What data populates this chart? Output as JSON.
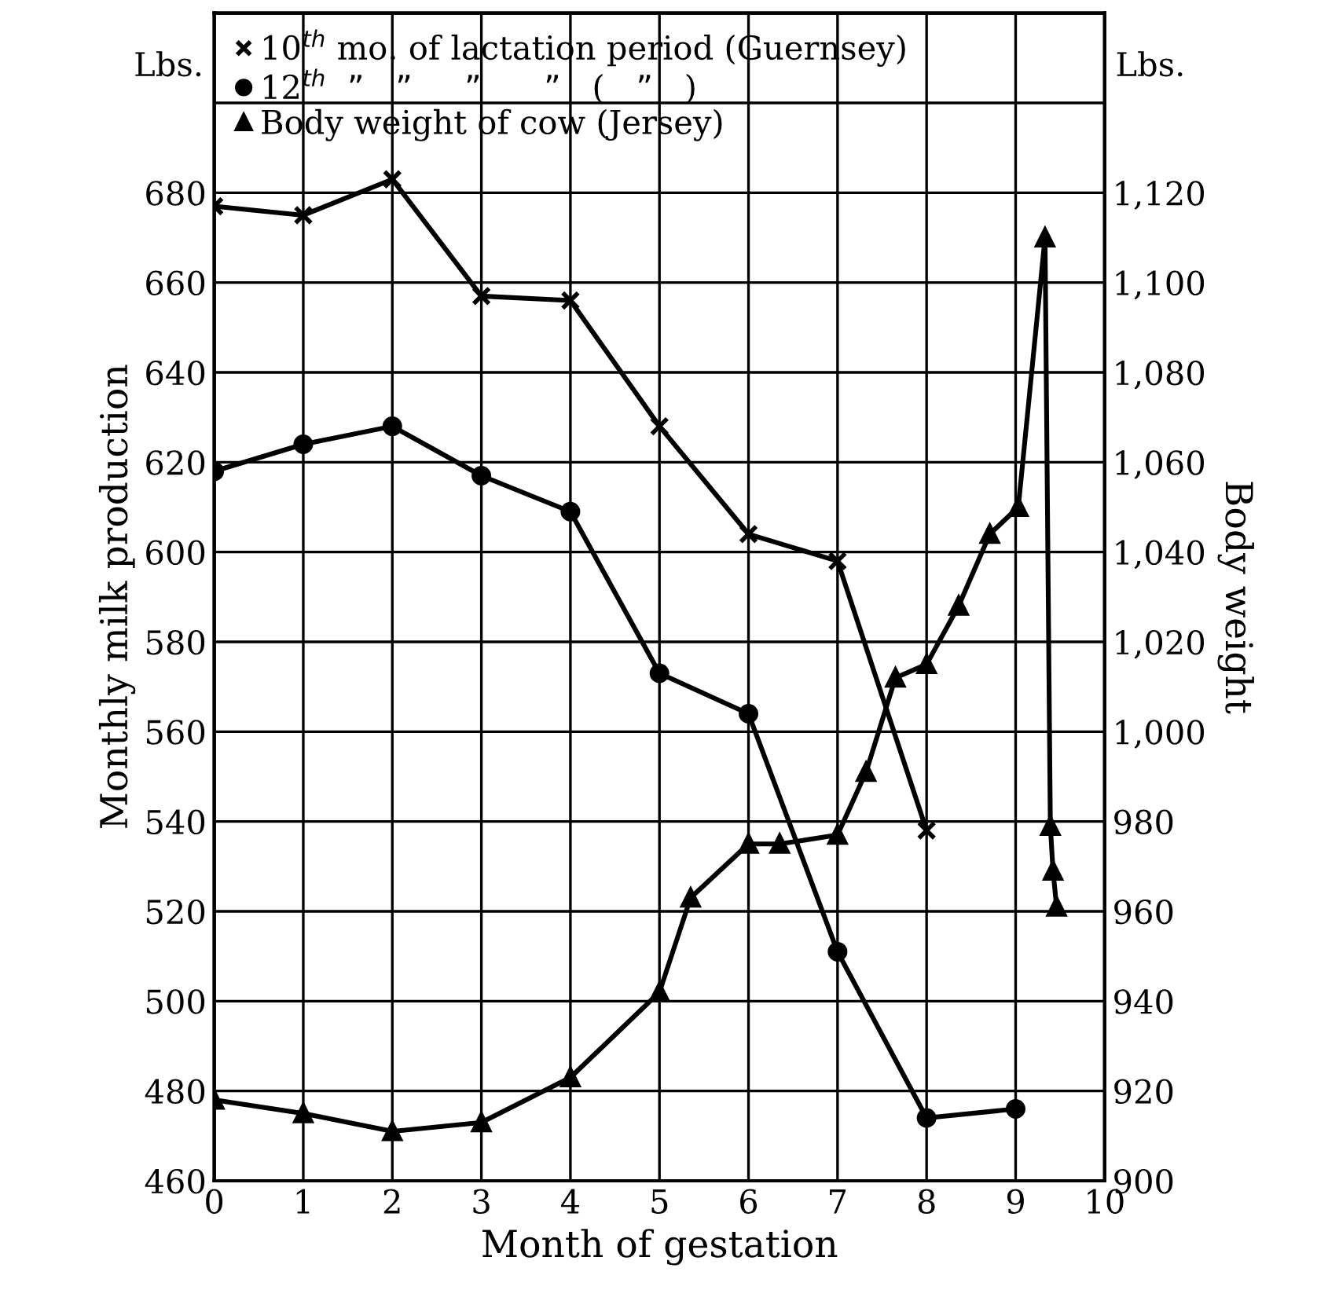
{
  "chart_data": {
    "type": "line",
    "xlabel": "Month of gestation",
    "ylabel": "Monthly milk production",
    "y2label": "Body weight",
    "annotations": [
      "Lbs.",
      "Lbs."
    ],
    "xlim": [
      0,
      10
    ],
    "xticks": [
      0,
      1,
      2,
      3,
      4,
      5,
      6,
      7,
      8,
      9,
      10
    ],
    "ylim": [
      460,
      720
    ],
    "yticks": [
      460,
      480,
      500,
      520,
      540,
      560,
      580,
      600,
      620,
      640,
      660,
      680,
      {
        "value": 700,
        "label": null
      }
    ],
    "y2lim": [
      900,
      1160
    ],
    "y2ticks": [
      900,
      920,
      940,
      960,
      980,
      {
        "value": 1000,
        "label": "1,000"
      },
      {
        "value": 1020,
        "label": "1,020"
      },
      {
        "value": 1040,
        "label": "1,040"
      },
      {
        "value": 1060,
        "label": "1,060"
      },
      {
        "value": 1080,
        "label": "1,080"
      },
      {
        "value": 1100,
        "label": "1,100"
      },
      {
        "value": 1120,
        "label": "1,120"
      },
      {
        "value": 1140,
        "label": null
      }
    ],
    "grid": true,
    "legend": "top left",
    "line_style": "solid",
    "series": [
      {
        "name": "10$^{th}$ mo. of lactation period (Guernsey)",
        "color": "#000000",
        "marker": "cross",
        "x": [
          0,
          1,
          2,
          3,
          4,
          5,
          6,
          7,
          8
        ],
        "values": [
          677,
          675,
          683,
          657,
          656,
          628,
          604,
          598,
          538
        ]
      },
      {
        "name": "12$^{th}$  ”   ”     ”      ”   (   ”   )",
        "color": "#000000",
        "marker": "circle",
        "x": [
          0,
          1,
          2,
          3,
          4,
          5,
          6,
          7,
          8,
          9
        ],
        "values": [
          618,
          624,
          628,
          617,
          609,
          573,
          564,
          511,
          474,
          476
        ]
      },
      {
        "name": "Body weight of cow (Jersey)",
        "color": "#000000",
        "marker": "triangle",
        "axis": "y2",
        "x": [
          0,
          1,
          2,
          3,
          4,
          5,
          5.35,
          6,
          6.35,
          7,
          7.32,
          7.65,
          8,
          8.36,
          8.71,
          9.03,
          9.33,
          9.39,
          9.42,
          9.46
        ],
        "values": [
          918,
          915,
          911,
          913,
          923,
          942,
          963,
          975,
          975,
          977,
          991,
          1012,
          1015,
          1028,
          1044,
          1050,
          1110,
          979,
          969,
          961
        ]
      }
    ]
  }
}
